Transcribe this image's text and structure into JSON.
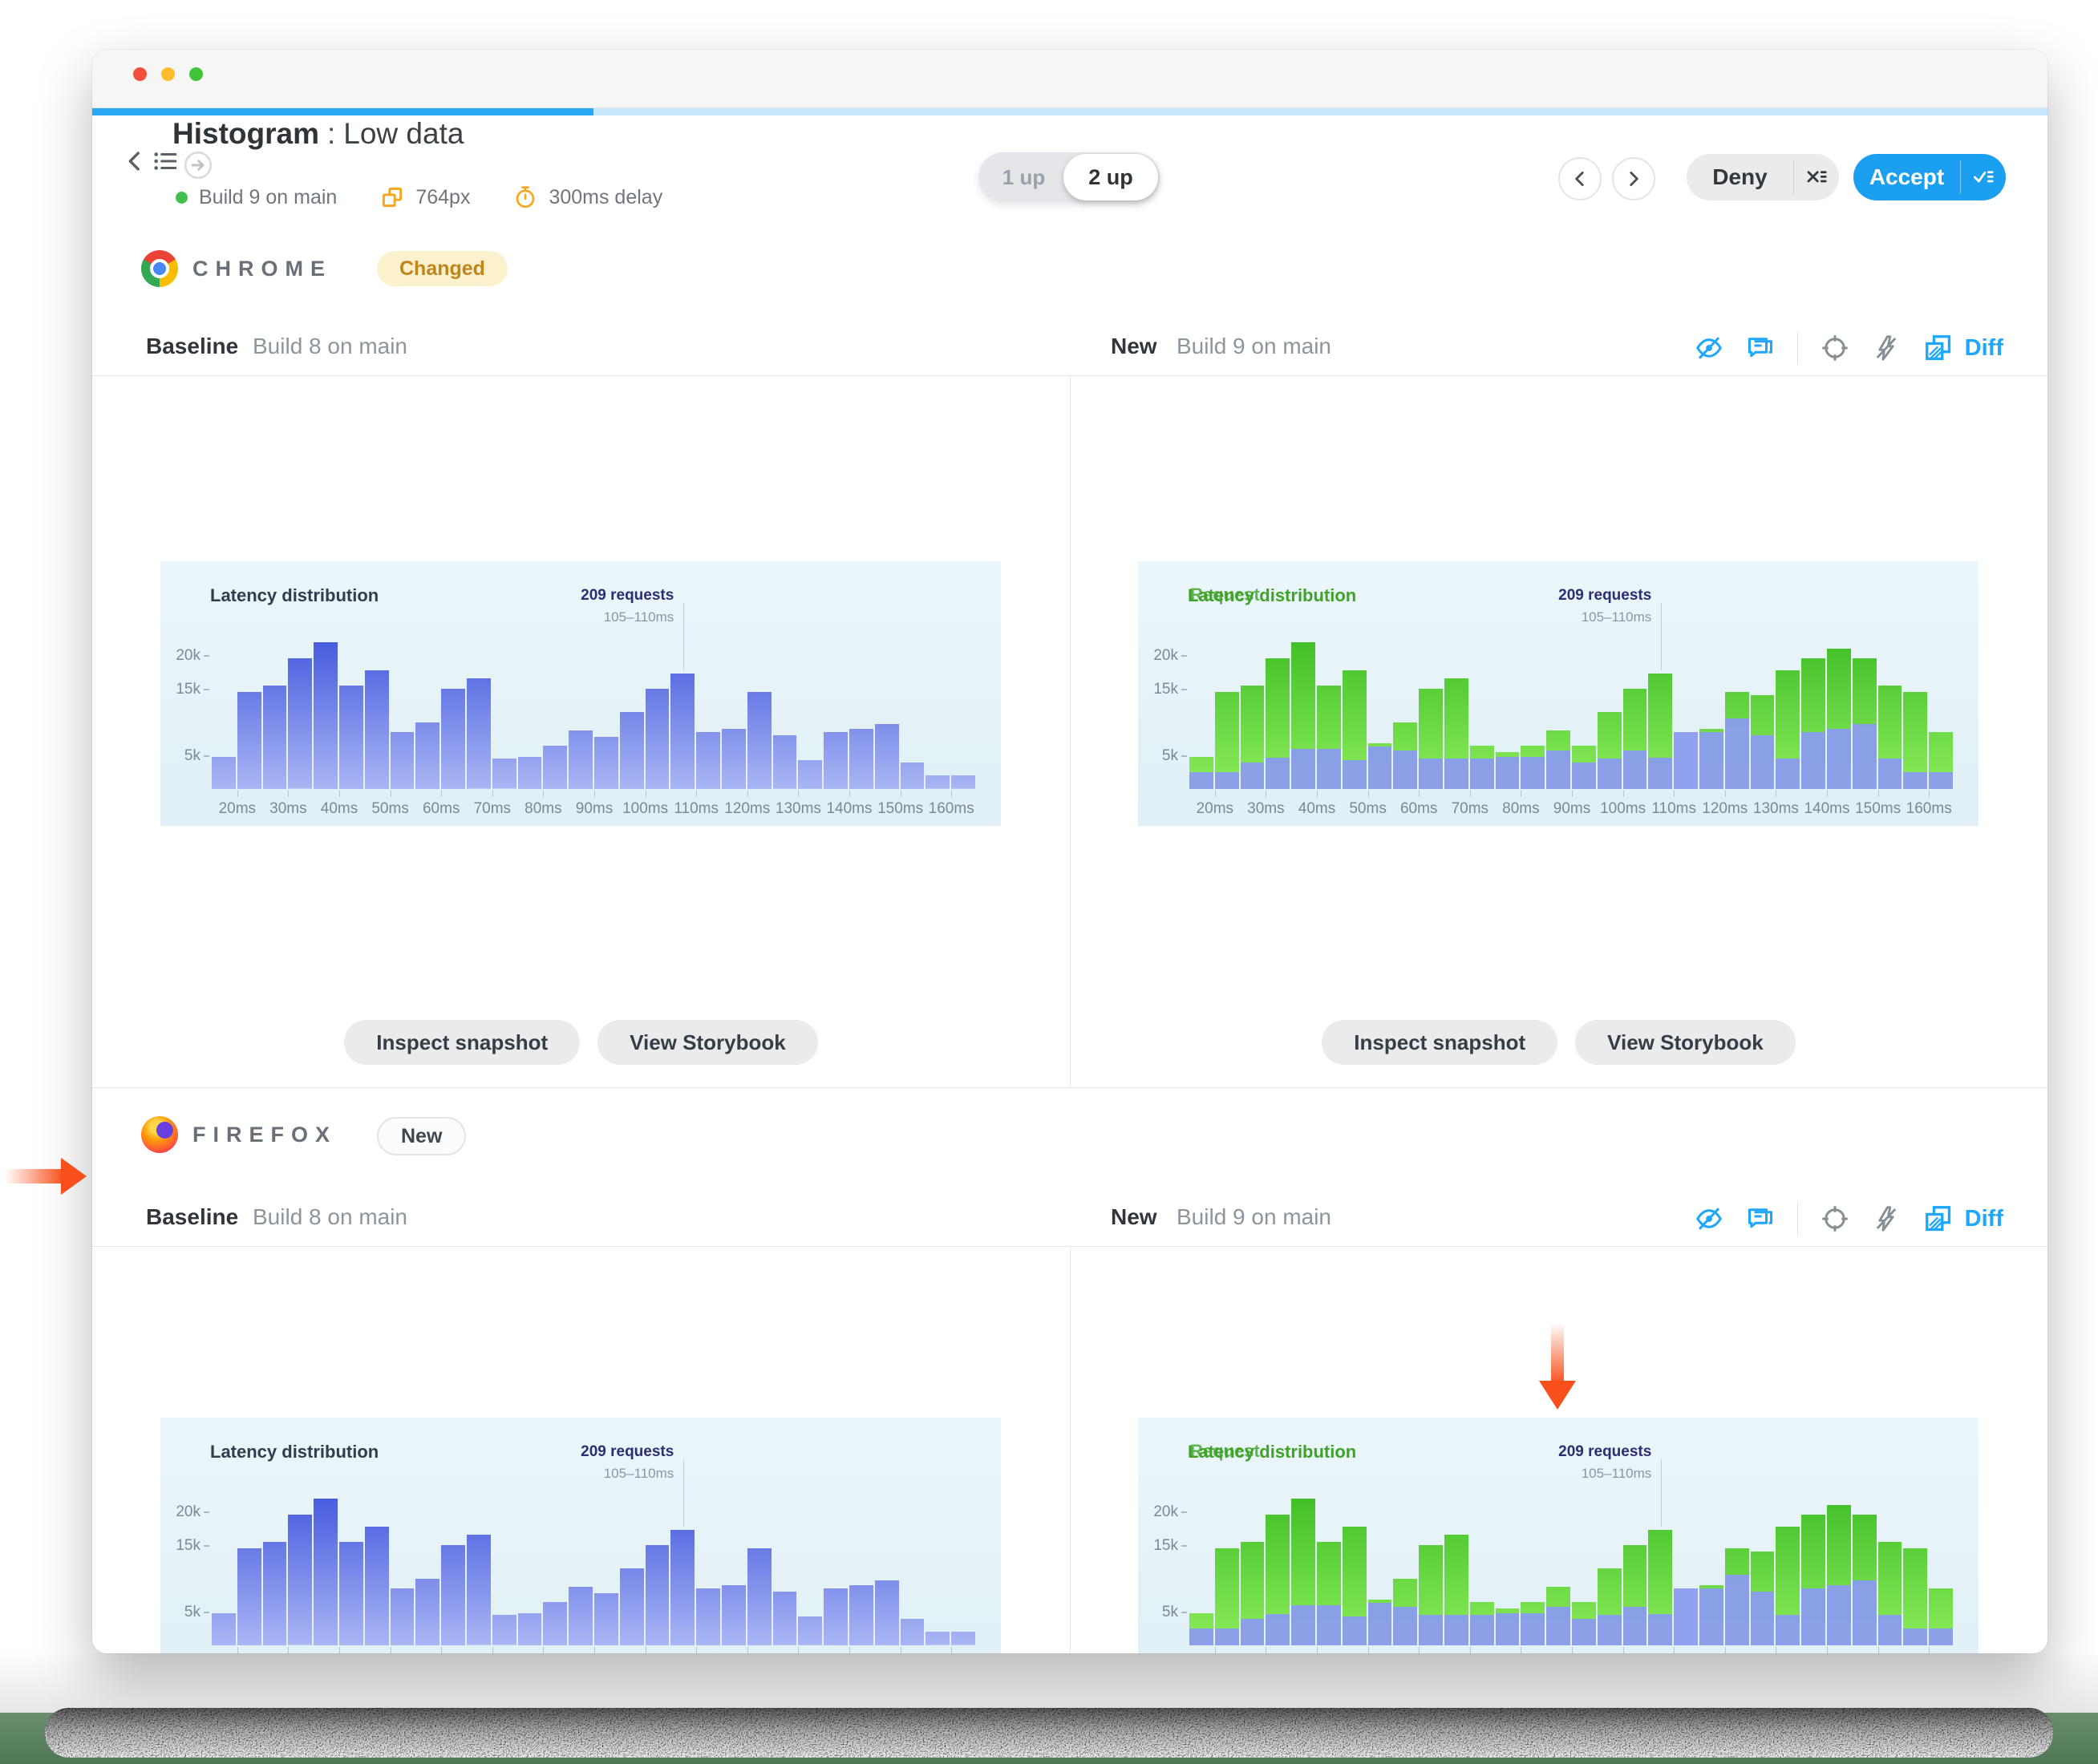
{
  "window_chrome": {
    "traffic_lights": [
      "close",
      "minimize",
      "zoom"
    ],
    "progress_done_color": "#29a8f3",
    "progress_rest_color": "#c4e7fb"
  },
  "header": {
    "title": "Histogram",
    "separator": ":",
    "variant": "Low data",
    "build_status": "Build 9 on main",
    "viewport": "764px",
    "delay": "300ms delay"
  },
  "view_toggle": {
    "one_up": "1 up",
    "two_up": "2 up",
    "active": "2 up"
  },
  "actions": {
    "deny": "Deny",
    "accept": "Accept"
  },
  "comparison": {
    "baseline_label": "Baseline",
    "baseline_build": "Build 8 on main",
    "new_label": "New",
    "new_build": "Build 9 on main",
    "diff_label": "Diff"
  },
  "sections": {
    "chrome": {
      "browser": "CHROME",
      "badge": "Changed"
    },
    "firefox": {
      "browser": "FIREFOX",
      "badge": "New"
    }
  },
  "panel_actions": {
    "inspect": "Inspect snapshot",
    "storybook": "View Storybook"
  },
  "icons": {
    "back-icon": "‹",
    "story-list-icon": "☰",
    "goto-icon": "→",
    "viewport-icon": "overlapping-squares",
    "timer-icon": "stopwatch",
    "prev-icon": "‹",
    "next-icon": "›",
    "deny-menu-icon": "x-with-list",
    "accept-menu-icon": "check-with-list",
    "hide-icon": "eye-off",
    "comment-icon": "speech-bubble",
    "focus-icon": "crosshair",
    "no-flash-icon": "bolt-off",
    "diff-icon": "overlapping-diff-squares"
  },
  "colors": {
    "accent_blue": "#1ea7fd",
    "accept_blue": "#1b9ff1",
    "changed_badge_bg": "#fbf1cd",
    "changed_badge_text": "#c0851b",
    "status_green": "#41c14b",
    "meta_orange": "#f6a821",
    "annotation_orange": "#f95520"
  },
  "chart_data": [
    {
      "type": "bar",
      "title": "Latency distribution",
      "x_min_ms": 15,
      "x_max_ms": 165,
      "bin_width_ms": 5,
      "x_tick_labels": [
        "20ms",
        "30ms",
        "40ms",
        "50ms",
        "60ms",
        "70ms",
        "80ms",
        "90ms",
        "100ms",
        "110ms",
        "120ms",
        "130ms",
        "140ms",
        "150ms",
        "160ms"
      ],
      "y_ticks": [
        {
          "label": "20k",
          "value": 20
        },
        {
          "label": "15k",
          "value": 15
        },
        {
          "label": "5k",
          "value": 5
        }
      ],
      "ylim": [
        0,
        23.5
      ],
      "values": [
        4.8,
        14.5,
        15.5,
        19.5,
        22,
        15.5,
        17.8,
        8.5,
        10,
        15,
        16.5,
        4.5,
        4.8,
        6.5,
        8.8,
        7.8,
        11.5,
        15,
        17.3,
        8.5,
        9,
        14.5,
        8,
        4.3,
        8.5,
        9,
        9.7,
        4,
        2,
        2
      ],
      "annotation": {
        "label": "209 requests",
        "sublabel": "105–110ms",
        "bin_index": 18
      },
      "colors": {
        "bar_top": "#4156dd",
        "bar_bottom": "#a9b6f4",
        "title": "#333c4e"
      }
    },
    {
      "type": "bar",
      "title_baseline": "Latency distribution",
      "title_new": "Request distribution",
      "x_min_ms": 15,
      "x_max_ms": 165,
      "bin_width_ms": 5,
      "x_tick_labels": [
        "20ms",
        "30ms",
        "40ms",
        "50ms",
        "60ms",
        "70ms",
        "80ms",
        "90ms",
        "100ms",
        "110ms",
        "120ms",
        "130ms",
        "140ms",
        "150ms",
        "160ms"
      ],
      "y_ticks": [
        {
          "label": "20k",
          "value": 20
        },
        {
          "label": "15k",
          "value": 15
        },
        {
          "label": "5k",
          "value": 5
        }
      ],
      "ylim": [
        0,
        23.5
      ],
      "series": [
        {
          "name": "new (changed)",
          "values": [
            4.8,
            14.5,
            15.5,
            19.5,
            22,
            15.5,
            17.8,
            6.8,
            10,
            15,
            16.5,
            6.5,
            5.5,
            6.5,
            8.8,
            6.5,
            11.5,
            15,
            17.3,
            0,
            9,
            14.5,
            14,
            17.8,
            19.5,
            21,
            19.5,
            15.5,
            14.5,
            8.5
          ]
        },
        {
          "name": "baseline overlay",
          "values": [
            2.5,
            2.5,
            4,
            4.7,
            6,
            6,
            4.3,
            6.3,
            5.8,
            4.5,
            4.5,
            4.5,
            4.8,
            4.8,
            5.8,
            4,
            4.5,
            5.8,
            4.7,
            8.5,
            8.5,
            10.5,
            8,
            4.5,
            8.5,
            9,
            9.7,
            4.5,
            2.5,
            2.5
          ]
        }
      ],
      "annotation": {
        "label": "209 requests",
        "sublabel": "105–110ms",
        "bin_index": 18
      },
      "colors": {
        "bar_top": "#3dbd25",
        "bar_bottom": "#8cec5b",
        "overlay": "rgba(139,156,238,0.95)",
        "title": "#3fa32a"
      }
    }
  ]
}
